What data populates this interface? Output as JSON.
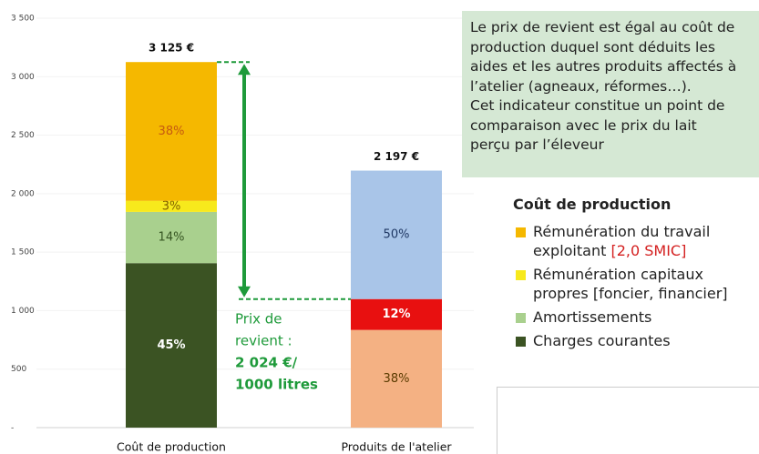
{
  "chart_data": {
    "type": "stacked-bar",
    "ylim": [
      0,
      3500
    ],
    "yticks": [
      {
        "value": 0,
        "label": "-"
      },
      {
        "value": 500,
        "label": "500"
      },
      {
        "value": 1000,
        "label": "1 000"
      },
      {
        "value": 1500,
        "label": "1 500"
      },
      {
        "value": 2000,
        "label": "2 000"
      },
      {
        "value": 2500,
        "label": "2 500"
      },
      {
        "value": 3000,
        "label": "3 000"
      },
      {
        "value": 3500,
        "label": "3 500"
      }
    ],
    "grid": true,
    "bars": [
      {
        "category": "Coût de production",
        "total": 3125,
        "total_label": "3 125 €",
        "segments": [
          {
            "name": "Charges courantes",
            "color": "#3b5323",
            "value": 1406,
            "label": "45%",
            "label_color": "#ffffff"
          },
          {
            "name": "Amortissements",
            "color": "#a9d08e",
            "value": 438,
            "label": "14%",
            "label_color": "#375623"
          },
          {
            "name": "Rémunération capitaux propres [foncier, financier]",
            "color": "#f7e91c",
            "value": 94,
            "label": "3%",
            "label_color": "#806000"
          },
          {
            "name": "Rémunération du travail exploitant",
            "note": "[2,0 SMIC]",
            "color": "#f5b800",
            "value": 1187,
            "label": "38%",
            "label_color": "#c55a11"
          }
        ]
      },
      {
        "category": "Produits de l'atelier",
        "total": 2197,
        "total_label": "2 197 €",
        "segments": [
          {
            "color": "#f4b183",
            "value": 835,
            "label": "38%",
            "label_color": "#5a3b00"
          },
          {
            "color": "#e81010",
            "value": 264,
            "label": "12%",
            "label_color": "#ffffff"
          },
          {
            "color": "#a9c5e8",
            "value": 1098,
            "label": "50%",
            "label_color": "#1f3864"
          }
        ]
      }
    ],
    "annotation": {
      "lines": [
        "Prix de",
        "revient :",
        "2 024 €/",
        "1000 litres"
      ],
      "color": "#1e9a3a"
    },
    "legend": {
      "title": "Coût de production"
    },
    "info_text": [
      "Le prix de revient est égal au coût de",
      "production duquel sont déduits les",
      "aides et les autres produits affectés à",
      "l’atelier (agneaux, réformes…).",
      "Cet indicateur constitue un point de",
      "comparaison avec le prix du lait",
      "perçu par l’éleveur"
    ]
  }
}
